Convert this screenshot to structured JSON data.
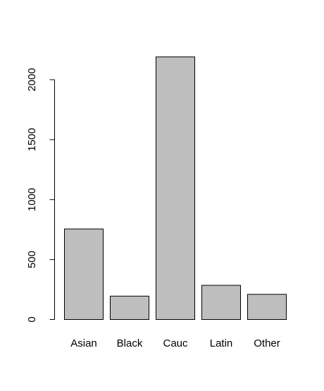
{
  "chart_data": {
    "type": "bar",
    "title": "",
    "xlabel": "",
    "ylabel": "",
    "categories": [
      "Asian",
      "Black",
      "Cauc",
      "Latin",
      "Other"
    ],
    "values": [
      755,
      195,
      2190,
      285,
      210
    ],
    "ylim": [
      0,
      2200
    ],
    "yticks": [
      0,
      500,
      1000,
      1500,
      2000
    ],
    "ytick_labels": [
      "0",
      "500",
      "1000",
      "1500",
      "2000"
    ],
    "grid": false,
    "legend": "none",
    "colors": {
      "bar_fill": "#bebebe",
      "bar_stroke": "#000000",
      "axis": "#000000",
      "background": "#ffffff"
    }
  }
}
